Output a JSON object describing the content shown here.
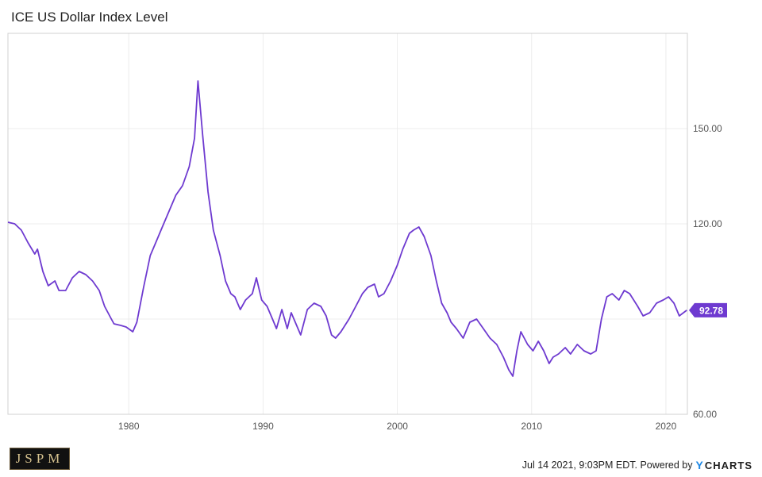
{
  "chart_data": {
    "type": "line",
    "title": "ICE US Dollar Index Level",
    "xlabel": "",
    "ylabel": "",
    "x_ticks": [
      "1980",
      "1990",
      "2000",
      "2010",
      "2020"
    ],
    "y_ticks": [
      "60.00",
      "120.00",
      "150.00"
    ],
    "ylim": [
      60,
      180
    ],
    "xlim": [
      1971,
      2021.6
    ],
    "grid": true,
    "current_value_label": "92.78",
    "colors": {
      "series": "#6e3ad0",
      "grid": "#ececec",
      "axis": "#cfcfcf",
      "label_bg": "#6e3ad0"
    },
    "series": [
      {
        "x": [
          1971.0,
          1971.5,
          1972.0,
          1972.5,
          1973.0,
          1973.2,
          1973.6,
          1974.0,
          1974.5,
          1974.8,
          1975.3,
          1975.8,
          1976.3,
          1976.8,
          1977.3,
          1977.8,
          1978.2,
          1978.7,
          1978.9,
          1979.4,
          1979.8,
          1980.3,
          1980.6,
          1981.1,
          1981.6,
          1982.0,
          1982.5,
          1983.0,
          1983.5,
          1984.0,
          1984.5,
          1984.9,
          1985.15,
          1985.5,
          1985.9,
          1986.3,
          1986.8,
          1987.2,
          1987.6,
          1987.9,
          1988.3,
          1988.7,
          1989.2,
          1989.5,
          1989.9,
          1990.3,
          1990.7,
          1991.0,
          1991.4,
          1991.8,
          1992.1,
          1992.6,
          1992.8,
          1993.3,
          1993.8,
          1994.3,
          1994.7,
          1995.1,
          1995.4,
          1995.8,
          1996.4,
          1996.9,
          1997.4,
          1997.8,
          1998.3,
          1998.6,
          1999.0,
          1999.5,
          2000.0,
          2000.4,
          2000.9,
          2001.2,
          2001.6,
          2002.0,
          2002.5,
          2002.9,
          2003.3,
          2003.7,
          2004.0,
          2004.4,
          2004.9,
          2005.4,
          2005.9,
          2006.4,
          2006.9,
          2007.4,
          2007.9,
          2008.3,
          2008.6,
          2008.9,
          2009.2,
          2009.7,
          2010.1,
          2010.5,
          2010.9,
          2011.3,
          2011.6,
          2012.0,
          2012.5,
          2012.9,
          2013.4,
          2013.9,
          2014.4,
          2014.8,
          2015.2,
          2015.6,
          2016.0,
          2016.5,
          2016.9,
          2017.3,
          2017.9,
          2018.3,
          2018.8,
          2019.3,
          2019.8,
          2020.2,
          2020.6,
          2021.0,
          2021.55
        ],
        "y": [
          120.5,
          120,
          118,
          114,
          110.5,
          112,
          105,
          100.5,
          102,
          99,
          99,
          103,
          105,
          104,
          102,
          99,
          94,
          90,
          88.5,
          88,
          87.5,
          86,
          89,
          100,
          110,
          114,
          119,
          124,
          129,
          132,
          138,
          147,
          165,
          148,
          130,
          118,
          110,
          102,
          98,
          97,
          93,
          96,
          98,
          103,
          96,
          94,
          90,
          87,
          93,
          87,
          92,
          87,
          85,
          93,
          95,
          94,
          91,
          85,
          84,
          86,
          90,
          94,
          98,
          100,
          101,
          97,
          98,
          102,
          107,
          112,
          117,
          118,
          119,
          116,
          110,
          102,
          95,
          92,
          89,
          87,
          84,
          89,
          90,
          87,
          84,
          82,
          78,
          74,
          72,
          80,
          86,
          82,
          80,
          83,
          80,
          76,
          78,
          79,
          81,
          79,
          82,
          80,
          79,
          80,
          90,
          97,
          98,
          96,
          99,
          98,
          94,
          91,
          92,
          95,
          96,
          97,
          95,
          91,
          92.78
        ]
      }
    ]
  },
  "footer": {
    "timestamp": "Jul 14 2021, 9:03PM EDT. Powered by",
    "brand_y": "Y",
    "brand_rest": "CHARTS"
  },
  "logo": {
    "text": "JSPM"
  }
}
